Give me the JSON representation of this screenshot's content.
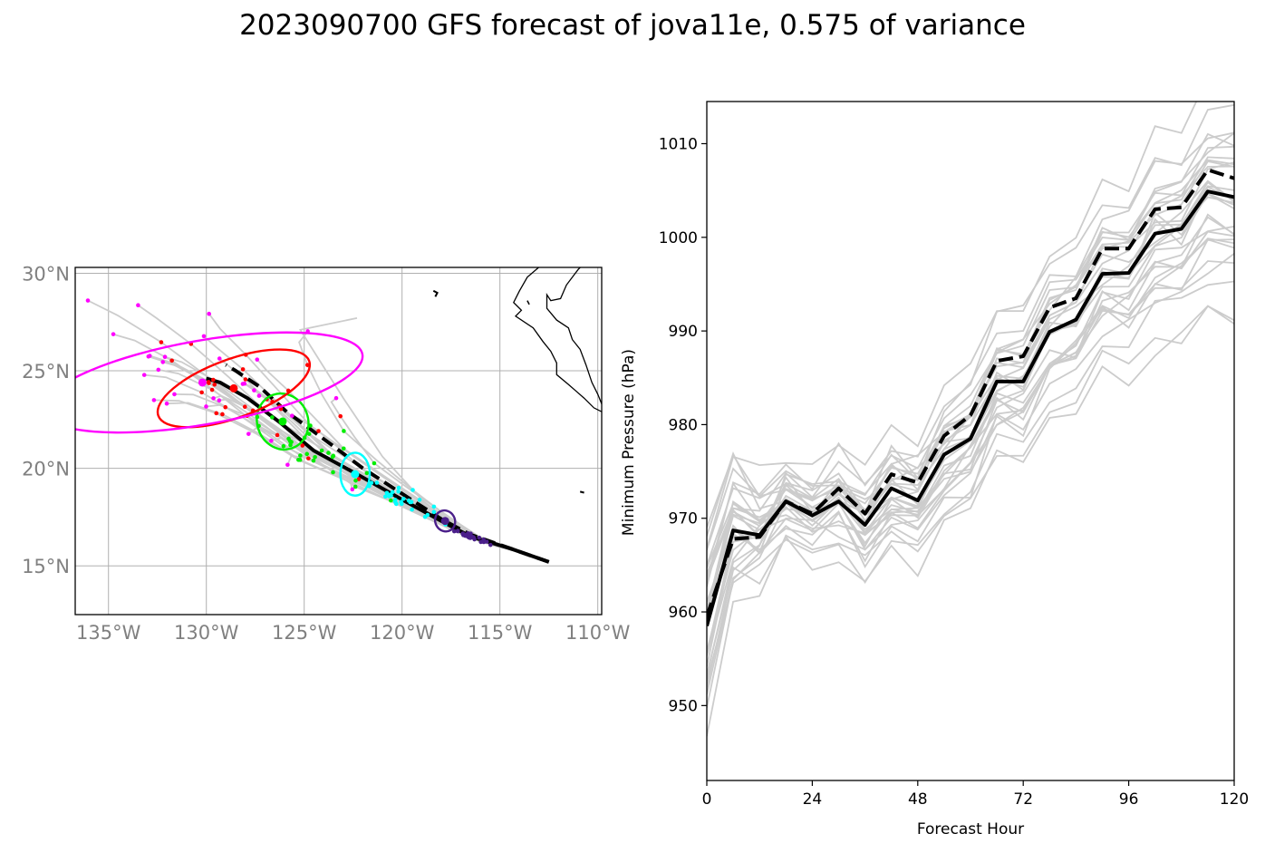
{
  "title": "2023090700 GFS forecast of jova11e, 0.575 of variance",
  "chart_data": [
    {
      "type": "scatter",
      "panel": "track-map",
      "xlim": [
        -136.7,
        -109.8
      ],
      "ylim": [
        12.5,
        30.3
      ],
      "x_ticks": [
        -135,
        -130,
        -125,
        -120,
        -115,
        -110
      ],
      "x_tick_labels": [
        "135°W",
        "130°W",
        "125°W",
        "120°W",
        "115°W",
        "110°W"
      ],
      "y_ticks": [
        15,
        20,
        25,
        30
      ],
      "y_tick_labels": [
        "15°N",
        "20°N",
        "25°N",
        "30°N"
      ],
      "grid": true,
      "colors": {
        "ensemble": "#cccccc",
        "mean": "#000000",
        "t24": "#4b1f8a",
        "t48": "#00ffff",
        "t72": "#00ee00",
        "t96": "#ff0000",
        "t120": "#ff00ff",
        "coast": "#000000"
      },
      "series": [
        {
          "style": "mean-solid",
          "lon": [
            -112.5,
            -114.5,
            -116.5,
            -118.0,
            -120.0,
            -122.3,
            -124.5,
            -126.3,
            -127.9,
            -129.3,
            -130.0
          ],
          "lat": [
            15.2,
            15.9,
            16.5,
            17.3,
            18.4,
            19.7,
            20.9,
            22.4,
            23.6,
            24.4,
            24.6
          ]
        },
        {
          "style": "mean-dashed",
          "lon": [
            -112.5,
            -114.5,
            -116.5,
            -118.0,
            -120.0,
            -122.0,
            -124.0,
            -125.9,
            -127.3,
            -128.5,
            -129.0
          ],
          "lat": [
            15.2,
            15.9,
            16.6,
            17.4,
            18.7,
            20.0,
            21.5,
            22.9,
            24.2,
            25.0,
            25.3
          ]
        }
      ],
      "ellipses": [
        {
          "hour": 24,
          "lon": -117.8,
          "lat": 17.3,
          "rx_deg": 0.5,
          "ry_deg": 0.55,
          "angle_deg": -30
        },
        {
          "hour": 48,
          "lon": -122.4,
          "lat": 19.7,
          "rx_deg": 0.75,
          "ry_deg": 1.1,
          "angle_deg": 0
        },
        {
          "hour": 72,
          "lon": -126.1,
          "lat": 22.4,
          "rx_deg": 1.3,
          "ry_deg": 1.45,
          "angle_deg": -20
        },
        {
          "hour": 96,
          "lon": -128.6,
          "lat": 24.1,
          "rx_deg": 4.1,
          "ry_deg": 1.5,
          "angle_deg": -20
        },
        {
          "hour": 120,
          "lon": -130.2,
          "lat": 24.4,
          "rx_deg": 8.3,
          "ry_deg": 2.15,
          "angle_deg": -10
        }
      ]
    },
    {
      "type": "line",
      "panel": "minimum-pressure",
      "xlabel": "Forecast Hour",
      "ylabel": "Minimum Pressure (hPa)",
      "xlim": [
        0,
        120
      ],
      "ylim": [
        942,
        1014.5
      ],
      "x_ticks": [
        0,
        24,
        48,
        72,
        96,
        120
      ],
      "y_ticks": [
        950,
        960,
        970,
        980,
        990,
        1000,
        1010
      ],
      "x": [
        0,
        6,
        12,
        18,
        24,
        30,
        36,
        42,
        48,
        54,
        60,
        66,
        72,
        78,
        84,
        90,
        96,
        102,
        108,
        114,
        120
      ],
      "series": [
        {
          "style": "mean-solid",
          "values": [
            958.5,
            968.7,
            968.2,
            971.8,
            970.3,
            971.8,
            969.3,
            973.2,
            971.9,
            976.8,
            978.5,
            984.6,
            984.6,
            989.9,
            991.2,
            996.1,
            996.2,
            1000.4,
            1000.9,
            1004.9,
            1004.3
          ]
        },
        {
          "style": "mean-dashed",
          "values": [
            959.5,
            967.8,
            968.0,
            971.8,
            970.5,
            973.2,
            970.5,
            974.7,
            973.8,
            978.8,
            981.0,
            986.8,
            987.3,
            992.5,
            993.5,
            998.8,
            998.8,
            1003.0,
            1003.2,
            1007.2,
            1006.3
          ]
        }
      ]
    }
  ]
}
